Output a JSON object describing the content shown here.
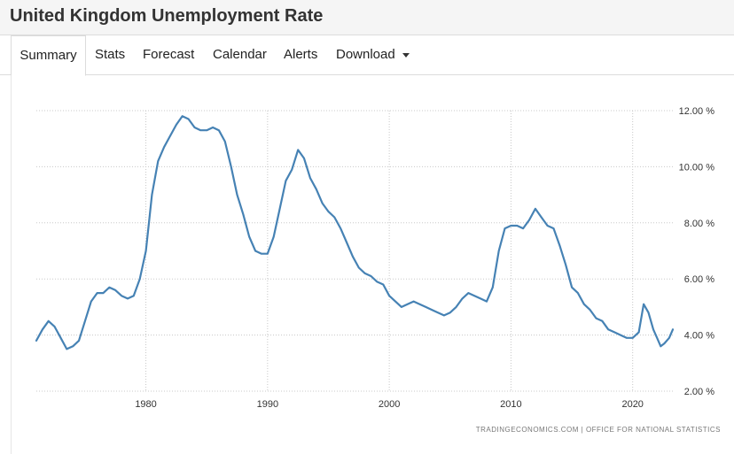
{
  "header": {
    "title": "United Kingdom Unemployment Rate"
  },
  "tabs": [
    {
      "label": "Summary"
    },
    {
      "label": "Stats"
    },
    {
      "label": "Forecast"
    },
    {
      "label": "Calendar"
    },
    {
      "label": "Alerts"
    },
    {
      "label": "Download"
    }
  ],
  "colors": {
    "line": "#4682b4",
    "grid": "#c8c8c8",
    "header_bg": "#f5f5f5"
  },
  "icons": {
    "download_caret": "caret-down-icon"
  },
  "source": "TRADINGECONOMICS.COM | OFFICE FOR NATIONAL STATISTICS",
  "chart_data": {
    "type": "line",
    "title": "",
    "xlabel": "",
    "ylabel": "",
    "xlim": [
      1971,
      2023.3
    ],
    "ylim": [
      2,
      12
    ],
    "grid": true,
    "y_axis_side": "right",
    "x_ticks": [
      1980,
      1990,
      2000,
      2010,
      2020
    ],
    "y_ticks": [
      2,
      4,
      6,
      8,
      10,
      12
    ],
    "y_tick_labels": [
      "2.00 %",
      "4.00 %",
      "6.00 %",
      "8.00 %",
      "10.00 %",
      "12.00 %"
    ],
    "series": [
      {
        "x": [
          1971.0,
          1971.5,
          1972.0,
          1972.5,
          1973.0,
          1973.5,
          1974.0,
          1974.5,
          1975.0,
          1975.5,
          1976.0,
          1976.5,
          1977.0,
          1977.5,
          1978.0,
          1978.5,
          1979.0,
          1979.5,
          1980.0,
          1980.5,
          1981.0,
          1981.5,
          1982.0,
          1982.5,
          1983.0,
          1983.5,
          1984.0,
          1984.5,
          1985.0,
          1985.5,
          1986.0,
          1986.5,
          1987.0,
          1987.5,
          1988.0,
          1988.5,
          1989.0,
          1989.5,
          1990.0,
          1990.5,
          1991.0,
          1991.5,
          1992.0,
          1992.5,
          1993.0,
          1993.5,
          1994.0,
          1994.5,
          1995.0,
          1995.5,
          1996.0,
          1996.5,
          1997.0,
          1997.5,
          1998.0,
          1998.5,
          1999.0,
          1999.5,
          2000.0,
          2000.5,
          2001.0,
          2001.5,
          2002.0,
          2002.5,
          2003.0,
          2003.5,
          2004.0,
          2004.5,
          2005.0,
          2005.5,
          2006.0,
          2006.5,
          2007.0,
          2007.5,
          2008.0,
          2008.5,
          2009.0,
          2009.5,
          2010.0,
          2010.5,
          2011.0,
          2011.5,
          2012.0,
          2012.5,
          2013.0,
          2013.5,
          2014.0,
          2014.5,
          2015.0,
          2015.5,
          2016.0,
          2016.5,
          2017.0,
          2017.5,
          2018.0,
          2018.5,
          2019.0,
          2019.5,
          2020.0,
          2020.5,
          2020.9,
          2021.3,
          2021.7,
          2022.0,
          2022.3,
          2022.6,
          2023.0,
          2023.3
        ],
        "values": [
          3.8,
          4.2,
          4.5,
          4.3,
          3.9,
          3.5,
          3.6,
          3.8,
          4.5,
          5.2,
          5.5,
          5.5,
          5.7,
          5.6,
          5.4,
          5.3,
          5.4,
          6.0,
          7.0,
          9.0,
          10.2,
          10.7,
          11.1,
          11.5,
          11.8,
          11.7,
          11.4,
          11.3,
          11.3,
          11.4,
          11.3,
          10.9,
          10.0,
          9.0,
          8.3,
          7.5,
          7.0,
          6.9,
          6.9,
          7.5,
          8.5,
          9.5,
          9.9,
          10.6,
          10.3,
          9.6,
          9.2,
          8.7,
          8.4,
          8.2,
          7.8,
          7.3,
          6.8,
          6.4,
          6.2,
          6.1,
          5.9,
          5.8,
          5.4,
          5.2,
          5.0,
          5.1,
          5.2,
          5.1,
          5.0,
          4.9,
          4.8,
          4.7,
          4.8,
          5.0,
          5.3,
          5.5,
          5.4,
          5.3,
          5.2,
          5.7,
          7.0,
          7.8,
          7.9,
          7.9,
          7.8,
          8.1,
          8.5,
          8.2,
          7.9,
          7.8,
          7.2,
          6.5,
          5.7,
          5.5,
          5.1,
          4.9,
          4.6,
          4.5,
          4.2,
          4.1,
          4.0,
          3.9,
          3.9,
          4.1,
          5.1,
          4.8,
          4.2,
          3.9,
          3.6,
          3.7,
          3.9,
          4.2
        ],
        "color": "#4682b4"
      }
    ]
  }
}
